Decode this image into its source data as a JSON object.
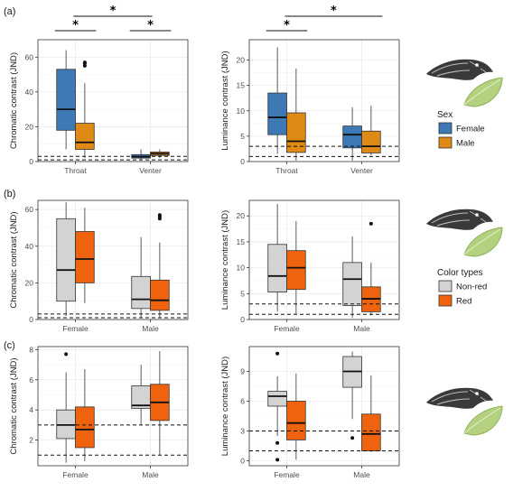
{
  "panel_labels": [
    "(a)",
    "(b)",
    "(c)"
  ],
  "legends": [
    {
      "title": "Sex",
      "entries": [
        {
          "label": "Female",
          "color": "#3d7ab5"
        },
        {
          "label": "Male",
          "color": "#e08a16"
        }
      ]
    },
    {
      "title": "Color types",
      "entries": [
        {
          "label": "Non-red",
          "color": "#d3d3d3"
        },
        {
          "label": "Red",
          "color": "#f0630e"
        }
      ]
    }
  ],
  "illustrations": [
    "lizard-drawing",
    "leaf-drawing"
  ],
  "significance_mark": "*",
  "chart_data": [
    {
      "type": "box",
      "panel": "(a)",
      "ylabel": "Chromatic contrast (JND)",
      "categories": [
        "Throat",
        "Venter"
      ],
      "ylim": [
        0,
        70
      ],
      "yticks": [
        0,
        20,
        40,
        60
      ],
      "reference_lines": [
        1,
        3
      ],
      "significance": [
        {
          "groups": [
            "Throat-Female",
            "Throat-Male"
          ],
          "label": "*"
        },
        {
          "groups": [
            "Throat-Male",
            "Venter-Female"
          ],
          "label": "*"
        },
        {
          "groups": [
            "Venter-Female",
            "Venter-Male"
          ],
          "label": "*"
        }
      ],
      "series": [
        {
          "name": "Female",
          "color": "#3d7ab5",
          "boxes": [
            {
              "whislo": 7,
              "q1": 18,
              "med": 30,
              "q3": 53,
              "whishi": 64,
              "fliers": []
            },
            {
              "whislo": 1,
              "q1": 2,
              "med": 2.8,
              "q3": 4,
              "whishi": 7,
              "fliers": []
            }
          ]
        },
        {
          "name": "Male",
          "color": "#e08a16",
          "boxes": [
            {
              "whislo": 2,
              "q1": 7,
              "med": 11,
              "q3": 22,
              "whishi": 45,
              "fliers": [
                55,
                56.5,
                57
              ]
            },
            {
              "whislo": 2,
              "q1": 3.5,
              "med": 4.5,
              "q3": 5.5,
              "whishi": 7,
              "fliers": []
            }
          ]
        }
      ]
    },
    {
      "type": "box",
      "panel": "(a)",
      "ylabel": "Luminance contrast (JND)",
      "categories": [
        "Throat",
        "Venter"
      ],
      "ylim": [
        0,
        24
      ],
      "yticks": [
        0,
        5,
        10,
        15,
        20
      ],
      "reference_lines": [
        1,
        3
      ],
      "significance": [
        {
          "groups": [
            "Throat-Female",
            "Throat-Male"
          ],
          "label": "*"
        },
        {
          "groups": [
            "Throat-Male",
            "Venter-Male"
          ],
          "label": "*"
        }
      ],
      "series": [
        {
          "name": "Female",
          "color": "#3d7ab5",
          "boxes": [
            {
              "whislo": 1.5,
              "q1": 5.3,
              "med": 8.7,
              "q3": 13.5,
              "whishi": 22.5,
              "fliers": []
            },
            {
              "whislo": 0.2,
              "q1": 2.7,
              "med": 5.3,
              "q3": 7,
              "whishi": 10.7,
              "fliers": []
            }
          ]
        },
        {
          "name": "Male",
          "color": "#e08a16",
          "boxes": [
            {
              "whislo": 0.2,
              "q1": 1.8,
              "med": 4,
              "q3": 9.6,
              "whishi": 18.3,
              "fliers": []
            },
            {
              "whislo": 1.2,
              "q1": 1.7,
              "med": 3,
              "q3": 6,
              "whishi": 11,
              "fliers": []
            }
          ]
        }
      ]
    },
    {
      "type": "box",
      "panel": "(b)",
      "ylabel": "Chromatic contrast (JND)",
      "categories": [
        "Female",
        "Male"
      ],
      "ylim": [
        0,
        65
      ],
      "yticks": [
        0,
        20,
        40,
        60
      ],
      "reference_lines": [
        1,
        3
      ],
      "series": [
        {
          "name": "Non-red",
          "color": "#d3d3d3",
          "boxes": [
            {
              "whislo": 2,
              "q1": 10,
              "med": 27,
              "q3": 55,
              "whishi": 64,
              "fliers": []
            },
            {
              "whislo": 1,
              "q1": 6,
              "med": 11,
              "q3": 23.5,
              "whishi": 45,
              "fliers": []
            }
          ]
        },
        {
          "name": "Red",
          "color": "#f0630e",
          "boxes": [
            {
              "whislo": 9,
              "q1": 20,
              "med": 33,
              "q3": 48,
              "whishi": 61,
              "fliers": []
            },
            {
              "whislo": 1,
              "q1": 5,
              "med": 10.5,
              "q3": 21.5,
              "whishi": 42,
              "fliers": [
                55,
                56,
                57
              ]
            }
          ]
        }
      ]
    },
    {
      "type": "box",
      "panel": "(b)",
      "ylabel": "Luminance contrast (JND)",
      "categories": [
        "Female",
        "Male"
      ],
      "ylim": [
        0,
        23
      ],
      "yticks": [
        0,
        5,
        10,
        15,
        20
      ],
      "reference_lines": [
        1,
        3
      ],
      "series": [
        {
          "name": "Non-red",
          "color": "#d3d3d3",
          "boxes": [
            {
              "whislo": 1.5,
              "q1": 5.3,
              "med": 8.4,
              "q3": 14.5,
              "whishi": 22.3,
              "fliers": []
            },
            {
              "whislo": 0.3,
              "q1": 2.7,
              "med": 7.8,
              "q3": 11,
              "whishi": 16,
              "fliers": []
            }
          ]
        },
        {
          "name": "Red",
          "color": "#f0630e",
          "boxes": [
            {
              "whislo": 1,
              "q1": 5.8,
              "med": 10,
              "q3": 13.3,
              "whishi": 19,
              "fliers": []
            },
            {
              "whislo": 0.8,
              "q1": 1.5,
              "med": 4,
              "q3": 6.3,
              "whishi": 11,
              "fliers": [
                18.5
              ]
            }
          ]
        }
      ]
    },
    {
      "type": "box",
      "panel": "(c)",
      "ylabel": "Chromatic contrast (JND)",
      "categories": [
        "Female",
        "Male"
      ],
      "ylim": [
        0.3,
        8.2
      ],
      "yticks": [
        2,
        4,
        6,
        8
      ],
      "reference_lines": [
        1,
        3
      ],
      "series": [
        {
          "name": "Non-red",
          "color": "#d3d3d3",
          "boxes": [
            {
              "whislo": 0.5,
              "q1": 2.1,
              "med": 3,
              "q3": 4,
              "whishi": 6.5,
              "fliers": [
                7.7
              ]
            },
            {
              "whislo": 3,
              "q1": 4.1,
              "med": 4.3,
              "q3": 5.6,
              "whishi": 7,
              "fliers": []
            }
          ]
        },
        {
          "name": "Red",
          "color": "#f0630e",
          "boxes": [
            {
              "whislo": 0.6,
              "q1": 1.5,
              "med": 2.7,
              "q3": 4.2,
              "whishi": 6.7,
              "fliers": []
            },
            {
              "whislo": 1,
              "q1": 3.3,
              "med": 4.5,
              "q3": 5.7,
              "whishi": 7.9,
              "fliers": []
            }
          ]
        }
      ]
    },
    {
      "type": "box",
      "panel": "(c)",
      "ylabel": "Luminance contrast (JND)",
      "categories": [
        "Female",
        "Male"
      ],
      "ylim": [
        -0.5,
        11.5
      ],
      "yticks": [
        0,
        3,
        6,
        9
      ],
      "reference_lines": [
        1,
        3
      ],
      "series": [
        {
          "name": "Non-red",
          "color": "#d3d3d3",
          "boxes": [
            {
              "whislo": 2.5,
              "q1": 5.5,
              "med": 6.5,
              "q3": 7,
              "whishi": 8.5,
              "fliers": [
                10.8,
                1.8,
                0.1
              ]
            },
            {
              "whislo": 4.2,
              "q1": 7.4,
              "med": 9,
              "q3": 10.5,
              "whishi": 11,
              "fliers": [
                2.3
              ]
            }
          ]
        },
        {
          "name": "Red",
          "color": "#f0630e",
          "boxes": [
            {
              "whislo": 0.1,
              "q1": 2.1,
              "med": 3.8,
              "q3": 6,
              "whishi": 8.8,
              "fliers": []
            },
            {
              "whislo": 0.9,
              "q1": 1,
              "med": 2.7,
              "q3": 4.7,
              "whishi": 8.6,
              "fliers": []
            }
          ]
        }
      ]
    }
  ]
}
